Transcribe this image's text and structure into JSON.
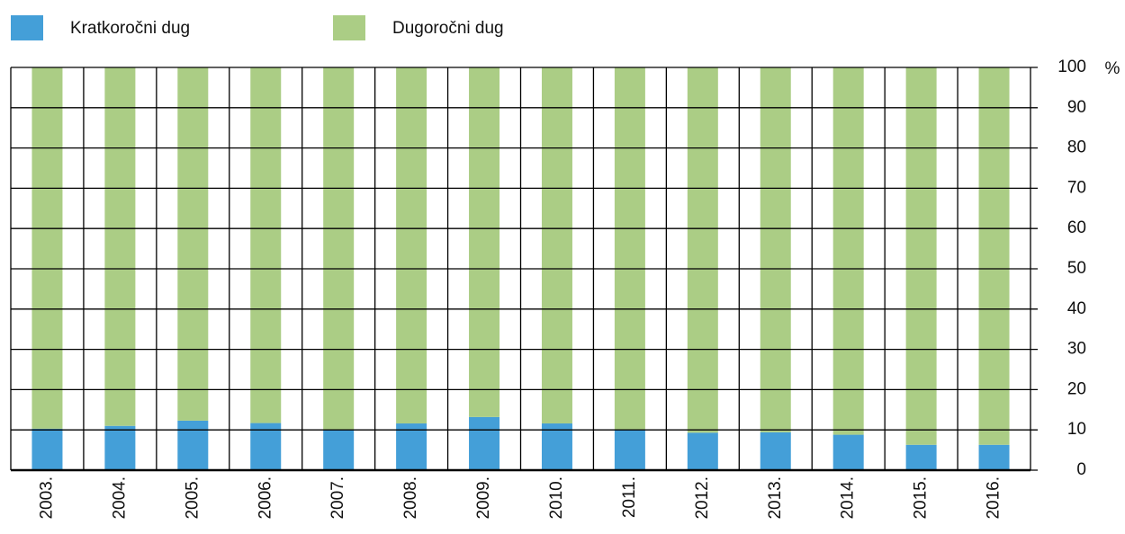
{
  "chart_data": {
    "type": "stacked_bar",
    "categories": [
      "2003.",
      "2004.",
      "2005.",
      "2006.",
      "2007.",
      "2008.",
      "2009.",
      "2010.",
      "2011.",
      "2012.",
      "2013.",
      "2014.",
      "2015.",
      "2016."
    ],
    "series": [
      {
        "name": "Kratkoročni dug",
        "color": "#449fd8",
        "values": [
          10.3,
          11,
          12.3,
          11.7,
          10,
          11.6,
          13.2,
          11.6,
          10,
          9.3,
          9.4,
          8.8,
          6.3,
          6.3
        ]
      },
      {
        "name": "Dugoročni dug",
        "color": "#abcd85",
        "values": [
          89.7,
          89,
          87.7,
          88.3,
          90,
          88.4,
          86.8,
          88.4,
          90,
          90.7,
          90.6,
          91.2,
          93.7,
          93.7
        ]
      }
    ],
    "y_unit": "%",
    "ylim": [
      0,
      100
    ],
    "yticks": [
      0,
      10,
      20,
      30,
      40,
      50,
      60,
      70,
      80,
      90,
      100
    ],
    "grid": true
  }
}
